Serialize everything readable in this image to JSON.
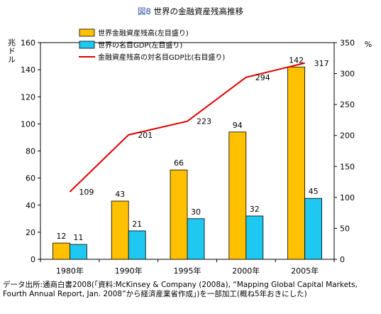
{
  "title": {
    "figure_label": "図8",
    "text": "世界の金融資産残高推移"
  },
  "source_note": {
    "line1": "データ出所:通商白書2008(「資料:McKinsey & Company (2008a), “Mapping Global Capital Markets,",
    "line2": "Fourth Annual Report, Jan. 2008”から経済産業省作成」)を一部加工(概ね5年おきにした)"
  },
  "chart_data": {
    "type": "bar",
    "categories": [
      "1980年",
      "1990年",
      "1995年",
      "2000年",
      "2005年"
    ],
    "series": [
      {
        "name": "世界金融資産残高(左目盛り)",
        "type": "bar",
        "axis": "left",
        "color": "#FFC000",
        "values": [
          12,
          43,
          66,
          94,
          142
        ]
      },
      {
        "name": "世界の名目GDP(左目盛り)",
        "type": "bar",
        "axis": "left",
        "color": "#1FC8F0",
        "values": [
          11,
          21,
          30,
          32,
          45
        ]
      },
      {
        "name": "金融資産残高の対名目GDP比(右目盛り)",
        "type": "line",
        "axis": "right",
        "color": "#E00000",
        "values": [
          109,
          201,
          223,
          294,
          317
        ]
      }
    ],
    "ylabel_left": "兆ドル",
    "ylabel_right": "%",
    "ylim_left": [
      0,
      160
    ],
    "yticks_left": [
      0,
      20,
      40,
      60,
      80,
      100,
      120,
      140,
      160
    ],
    "ylim_right": [
      0,
      350
    ],
    "yticks_right": [
      0,
      50,
      100,
      150,
      200,
      250,
      300,
      350
    ],
    "grid": false,
    "legend_position": "top-left"
  }
}
